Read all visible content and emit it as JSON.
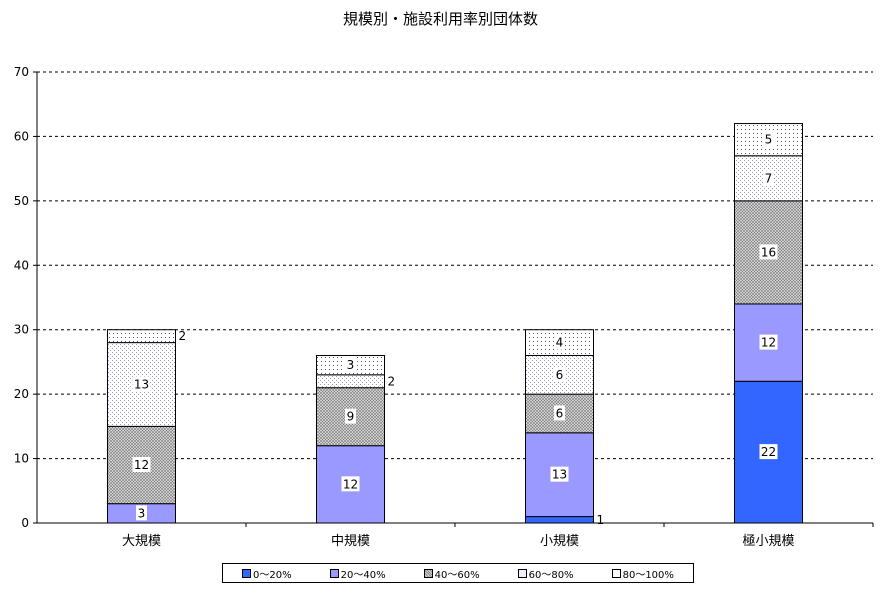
{
  "chart_data": {
    "type": "bar",
    "stacked": true,
    "title": "規模別・施設利用率別団体数",
    "categories": [
      "大規模",
      "中規模",
      "小規模",
      "極小規模"
    ],
    "ylim": [
      0,
      70
    ],
    "yticks": [
      0,
      10,
      20,
      30,
      40,
      50,
      60,
      70
    ],
    "grid": "dashed horizontal",
    "legend_position": "bottom",
    "series": [
      {
        "name": "0～20%",
        "values": [
          0,
          0,
          1,
          22
        ],
        "color": "#3366ff",
        "pattern": "solid"
      },
      {
        "name": "20～40%",
        "values": [
          3,
          12,
          13,
          12
        ],
        "color": "#9999ff",
        "pattern": "solid"
      },
      {
        "name": "40～60%",
        "values": [
          12,
          9,
          6,
          16
        ],
        "color": "#c0c0c0",
        "pattern": "crosshatch"
      },
      {
        "name": "60～80%",
        "values": [
          13,
          2,
          6,
          7
        ],
        "color": "#e6e6f2",
        "pattern": "light-dots"
      },
      {
        "name": "80～100%",
        "values": [
          2,
          3,
          4,
          5
        ],
        "color": "#ffffff",
        "pattern": "dots"
      }
    ]
  }
}
